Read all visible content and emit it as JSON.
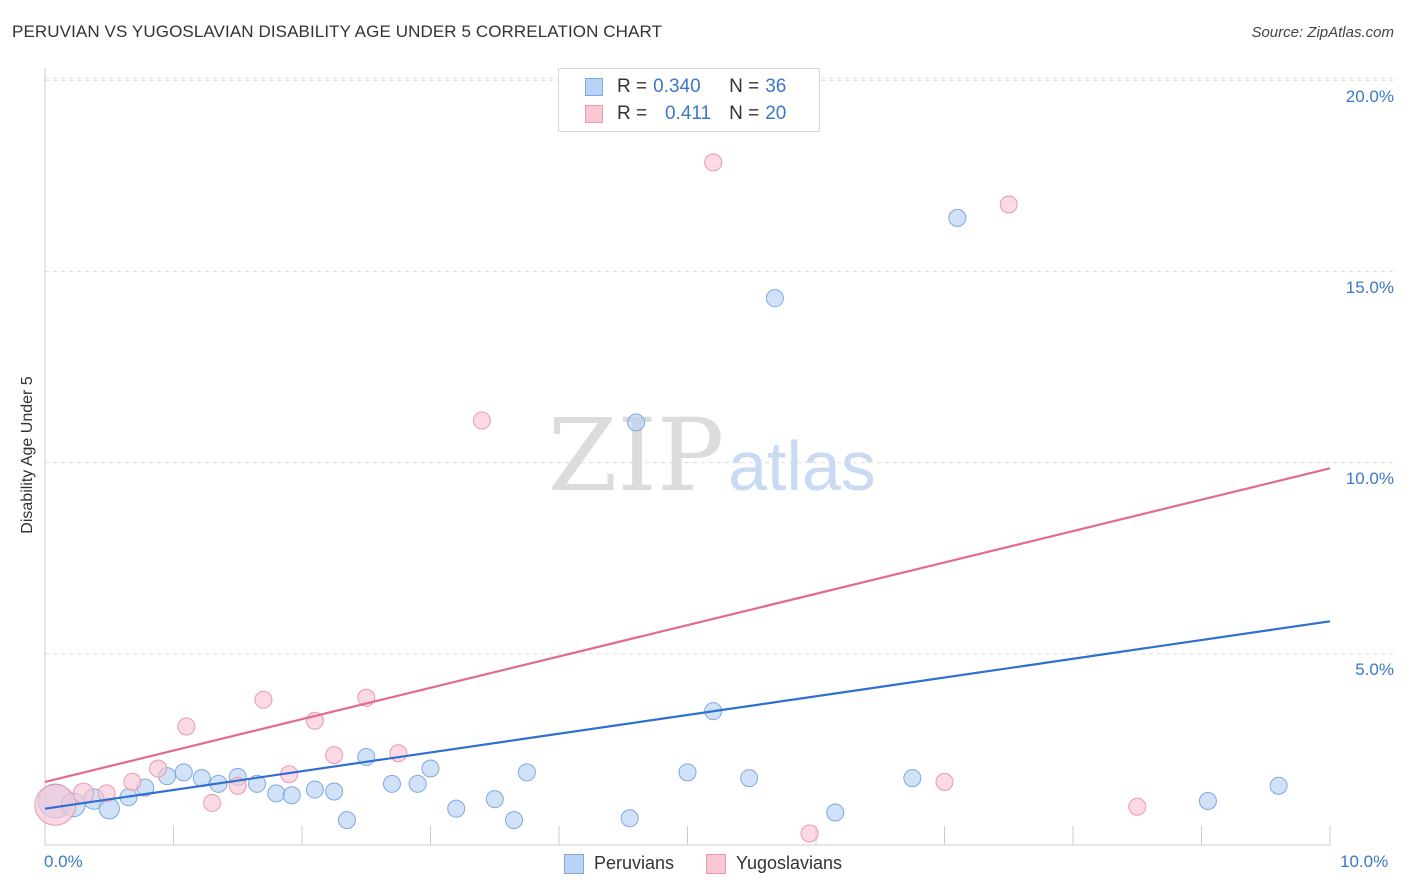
{
  "title": "PERUVIAN VS YUGOSLAVIAN DISABILITY AGE UNDER 5 CORRELATION CHART",
  "source": "Source: ZipAtlas.com",
  "watermark": {
    "zip": "ZIP",
    "atlas": "atlas"
  },
  "legend": {
    "rows": [
      {
        "r_label": "R =",
        "r_value": "0.340",
        "n_label": "N =",
        "n_value": "36"
      },
      {
        "r_label": "R =",
        "r_value": "0.411",
        "n_label": "N =",
        "n_value": "20"
      }
    ]
  },
  "bottom_legend": {
    "series1": "Peruvians",
    "series2": "Yugoslavians"
  },
  "colors": {
    "series1_fill": "#b8d3f5",
    "series1_stroke": "#7ea8df",
    "series1_line": "#2f6fcf",
    "series2_fill": "#f9c6d4",
    "series2_stroke": "#eb98b1",
    "series2_line": "#e26a92",
    "tick_text": "#3a78c9",
    "grid": "#dedede"
  },
  "chart_data": {
    "type": "scatter",
    "title": "PERUVIAN VS YUGOSLAVIAN DISABILITY AGE UNDER 5 CORRELATION CHART",
    "xlabel": "",
    "ylabel": "Disability Age Under 5",
    "xlim": [
      0,
      10
    ],
    "ylim": [
      0,
      20.5
    ],
    "x_tick_labels": [
      "0.0%",
      "10.0%"
    ],
    "y_ticks": [
      5,
      10,
      15,
      20
    ],
    "y_tick_labels": [
      "5.0%",
      "10.0%",
      "15.0%",
      "20.0%"
    ],
    "series": [
      {
        "name": "Peruvians",
        "r": 0.34,
        "n": 36,
        "trend": {
          "x": [
            0,
            10
          ],
          "y": [
            0.95,
            5.85
          ]
        },
        "points": [
          {
            "x": 0.08,
            "y": 1.15,
            "s": 2.0
          },
          {
            "x": 0.22,
            "y": 1.05,
            "s": 1.4
          },
          {
            "x": 0.38,
            "y": 1.2,
            "s": 1.2
          },
          {
            "x": 0.5,
            "y": 0.95,
            "s": 1.2
          },
          {
            "x": 0.65,
            "y": 1.25,
            "s": 1.0
          },
          {
            "x": 0.78,
            "y": 1.5,
            "s": 1.0
          },
          {
            "x": 0.95,
            "y": 1.8,
            "s": 1.0
          },
          {
            "x": 1.08,
            "y": 1.9,
            "s": 1.0
          },
          {
            "x": 1.22,
            "y": 1.75,
            "s": 1.0
          },
          {
            "x": 1.35,
            "y": 1.6,
            "s": 1.0
          },
          {
            "x": 1.5,
            "y": 1.78,
            "s": 1.0
          },
          {
            "x": 1.65,
            "y": 1.6,
            "s": 1.0
          },
          {
            "x": 1.8,
            "y": 1.35,
            "s": 1.0
          },
          {
            "x": 1.92,
            "y": 1.3,
            "s": 1.0
          },
          {
            "x": 2.1,
            "y": 1.45,
            "s": 1.0
          },
          {
            "x": 2.25,
            "y": 1.4,
            "s": 1.0
          },
          {
            "x": 2.35,
            "y": 0.65,
            "s": 1.0
          },
          {
            "x": 2.5,
            "y": 2.3,
            "s": 1.0
          },
          {
            "x": 2.7,
            "y": 1.6,
            "s": 1.0
          },
          {
            "x": 2.9,
            "y": 1.6,
            "s": 1.0
          },
          {
            "x": 3.0,
            "y": 2.0,
            "s": 1.0
          },
          {
            "x": 3.2,
            "y": 0.95,
            "s": 1.0
          },
          {
            "x": 3.5,
            "y": 1.2,
            "s": 1.0
          },
          {
            "x": 3.65,
            "y": 0.65,
            "s": 1.0
          },
          {
            "x": 3.75,
            "y": 1.9,
            "s": 1.0
          },
          {
            "x": 4.55,
            "y": 0.7,
            "s": 1.0
          },
          {
            "x": 4.6,
            "y": 11.05,
            "s": 1.0
          },
          {
            "x": 5.0,
            "y": 1.9,
            "s": 1.0
          },
          {
            "x": 5.2,
            "y": 3.5,
            "s": 1.0
          },
          {
            "x": 5.48,
            "y": 1.75,
            "s": 1.0
          },
          {
            "x": 5.68,
            "y": 14.3,
            "s": 1.0
          },
          {
            "x": 6.15,
            "y": 0.85,
            "s": 1.0
          },
          {
            "x": 6.75,
            "y": 1.75,
            "s": 1.0
          },
          {
            "x": 7.1,
            "y": 16.4,
            "s": 1.0
          },
          {
            "x": 9.05,
            "y": 1.15,
            "s": 1.0
          },
          {
            "x": 9.6,
            "y": 1.55,
            "s": 1.0
          }
        ]
      },
      {
        "name": "Yugoslavians",
        "r": 0.411,
        "n": 20,
        "trend": {
          "x": [
            0,
            10
          ],
          "y": [
            1.65,
            9.85
          ]
        },
        "points": [
          {
            "x": 0.08,
            "y": 1.05,
            "s": 2.4
          },
          {
            "x": 0.3,
            "y": 1.35,
            "s": 1.2
          },
          {
            "x": 0.48,
            "y": 1.35,
            "s": 1.0
          },
          {
            "x": 0.68,
            "y": 1.65,
            "s": 1.0
          },
          {
            "x": 0.88,
            "y": 2.0,
            "s": 1.0
          },
          {
            "x": 1.1,
            "y": 3.1,
            "s": 1.0
          },
          {
            "x": 1.3,
            "y": 1.1,
            "s": 1.0
          },
          {
            "x": 1.5,
            "y": 1.55,
            "s": 1.0
          },
          {
            "x": 1.7,
            "y": 3.8,
            "s": 1.0
          },
          {
            "x": 1.9,
            "y": 1.85,
            "s": 1.0
          },
          {
            "x": 2.1,
            "y": 3.25,
            "s": 1.0
          },
          {
            "x": 2.25,
            "y": 2.35,
            "s": 1.0
          },
          {
            "x": 2.5,
            "y": 3.85,
            "s": 1.0
          },
          {
            "x": 2.75,
            "y": 2.4,
            "s": 1.0
          },
          {
            "x": 3.4,
            "y": 11.1,
            "s": 1.0
          },
          {
            "x": 5.2,
            "y": 17.85,
            "s": 1.0
          },
          {
            "x": 5.95,
            "y": 0.3,
            "s": 1.0
          },
          {
            "x": 7.0,
            "y": 1.65,
            "s": 1.0
          },
          {
            "x": 7.5,
            "y": 16.75,
            "s": 1.0
          },
          {
            "x": 8.5,
            "y": 1.0,
            "s": 1.0
          }
        ]
      }
    ]
  }
}
